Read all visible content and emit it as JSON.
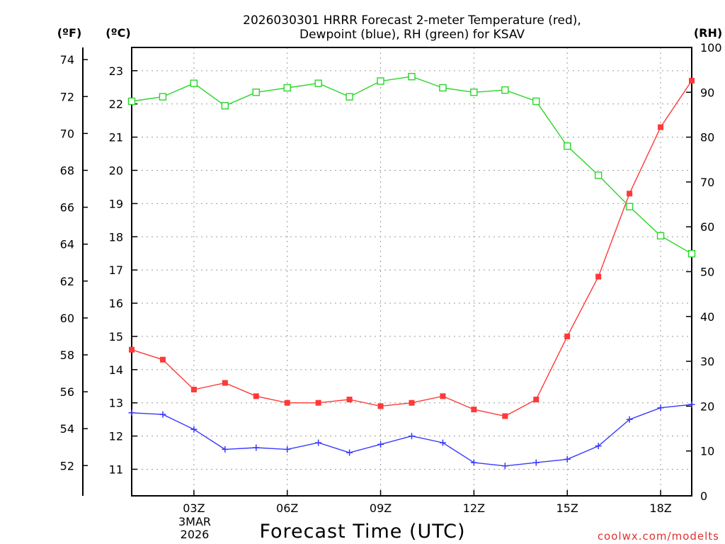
{
  "chart_data": {
    "type": "line",
    "title_lines": [
      "2026030301 HRRR Forecast 2-meter Temperature (red),",
      "Dewpoint (blue), RH (green) for KSAV"
    ],
    "xlabel": "Forecast Time (UTC)",
    "watermark": "coolwx.com/modelts",
    "axis_labels": {
      "fahrenheit": "(ºF)",
      "celsius": "(ºC)",
      "rh": "(RH)"
    },
    "x_hours": [
      1,
      2,
      3,
      4,
      5,
      6,
      7,
      8,
      9,
      10,
      11,
      12,
      13,
      14,
      15,
      16,
      17,
      18,
      19
    ],
    "xlim": [
      1,
      19
    ],
    "x_ticks": [
      {
        "hour": 3,
        "label": "03Z"
      },
      {
        "hour": 6,
        "label": "06Z"
      },
      {
        "hour": 9,
        "label": "09Z"
      },
      {
        "hour": 12,
        "label": "12Z"
      },
      {
        "hour": 15,
        "label": "15Z"
      },
      {
        "hour": 18,
        "label": "18Z"
      }
    ],
    "date_label": [
      "3MAR",
      "2026"
    ],
    "celsius_ylim": [
      10.2,
      23.7
    ],
    "celsius_ticks": [
      11,
      12,
      13,
      14,
      15,
      16,
      17,
      18,
      19,
      20,
      21,
      22,
      23
    ],
    "fahrenheit_ticks": [
      52,
      54,
      56,
      58,
      60,
      62,
      64,
      66,
      68,
      70,
      72,
      74
    ],
    "rh_ylim": [
      0,
      100
    ],
    "rh_ticks": [
      0,
      10,
      20,
      30,
      40,
      50,
      60,
      70,
      80,
      90,
      100
    ],
    "series": [
      {
        "name": "Temperature",
        "axis": "celsius",
        "color": "#ff3838",
        "marker": "filled-square",
        "values": [
          14.6,
          14.3,
          13.4,
          13.6,
          13.2,
          13.0,
          13.0,
          13.1,
          12.9,
          13.0,
          13.2,
          12.8,
          12.6,
          13.1,
          15.0,
          16.8,
          19.3,
          21.3,
          22.7
        ]
      },
      {
        "name": "Dewpoint",
        "axis": "celsius",
        "color": "#3838ff",
        "marker": "plus",
        "values": [
          12.7,
          12.65,
          12.2,
          11.6,
          11.65,
          11.6,
          11.8,
          11.5,
          11.75,
          12.0,
          11.8,
          11.2,
          11.1,
          11.2,
          11.3,
          11.7,
          12.5,
          12.85,
          12.95
        ]
      },
      {
        "name": "RH",
        "axis": "rh",
        "color": "#28d628",
        "marker": "open-square",
        "values": [
          88,
          89,
          92,
          87,
          90,
          91,
          92,
          89,
          92.5,
          93.5,
          91,
          90,
          90.5,
          88,
          78,
          71.5,
          64.5,
          58,
          54
        ]
      }
    ]
  }
}
